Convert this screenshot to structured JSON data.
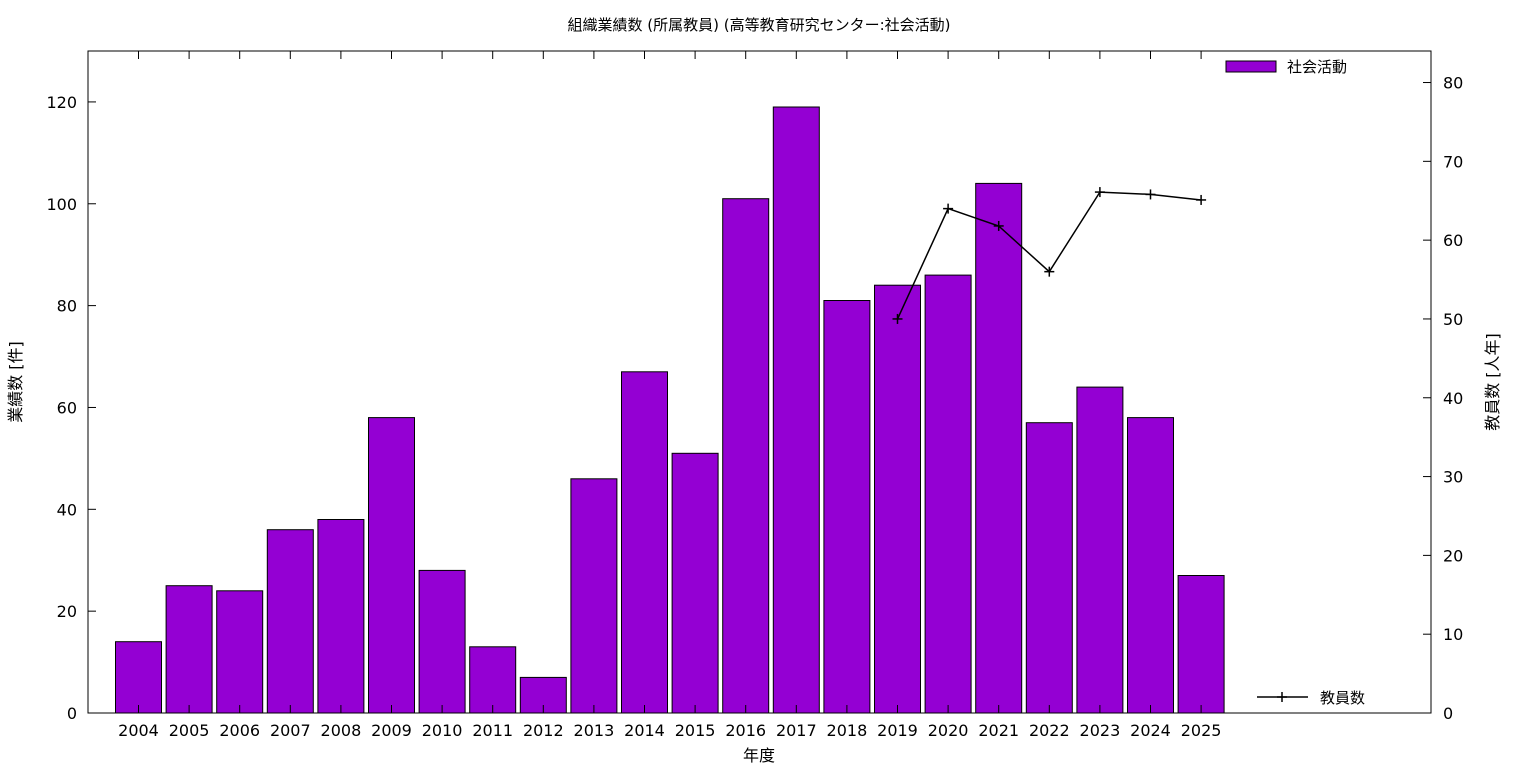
{
  "chart_data": {
    "type": "bar",
    "title": "組織業績数 (所属教員) (高等教育研究センター:社会活動)",
    "xlabel": "年度",
    "ylabel": "業績数 [件]",
    "y2label": "教員数 [人年]",
    "categories": [
      "2004",
      "2005",
      "2006",
      "2007",
      "2008",
      "2009",
      "2010",
      "2011",
      "2012",
      "2013",
      "2014",
      "2015",
      "2016",
      "2017",
      "2018",
      "2019",
      "2020",
      "2021",
      "2022",
      "2023",
      "2024",
      "2025"
    ],
    "series": [
      {
        "name": "社会活動",
        "type": "bar",
        "axis": "left",
        "color": "#9400d3",
        "values": [
          14,
          25,
          24,
          36,
          38,
          58,
          28,
          13,
          7,
          46,
          67,
          51,
          101,
          119,
          81,
          84,
          86,
          104,
          57,
          64,
          58,
          27
        ]
      },
      {
        "name": "教員数",
        "type": "line",
        "axis": "right",
        "color": "#000000",
        "x": [
          "2019",
          "2020",
          "2021",
          "2022",
          "2023",
          "2024",
          "2025"
        ],
        "values": [
          50,
          64,
          61.8,
          56,
          66.1,
          65.8,
          65.1
        ]
      }
    ],
    "ylim": [
      0,
      130
    ],
    "yticks": [
      0,
      20,
      40,
      60,
      80,
      100,
      120
    ],
    "y2lim": [
      0,
      84
    ],
    "y2ticks": [
      0,
      10,
      20,
      30,
      40,
      50,
      60,
      70,
      80
    ],
    "grid": false,
    "legend": [
      "top-right",
      "bottom-right"
    ]
  }
}
